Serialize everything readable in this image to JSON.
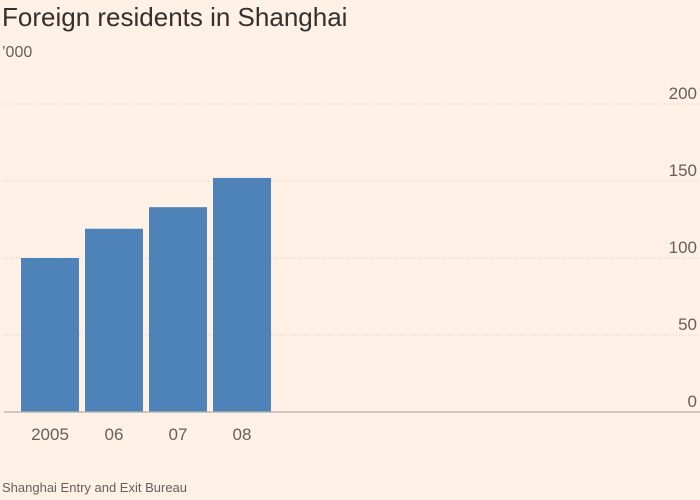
{
  "chart_data": {
    "type": "bar",
    "title": "Foreign residents in Shanghai",
    "subtitle": "’000",
    "source": "Shanghai Entry and Exit Bureau",
    "categories": [
      "2005",
      "06",
      "07",
      "08"
    ],
    "values": [
      100,
      119,
      133,
      152
    ],
    "ylim": [
      0,
      200
    ],
    "yticks": [
      0,
      50,
      100,
      150,
      200
    ],
    "xlabel": "",
    "ylabel": "",
    "grid": true,
    "bar_color": "#4e83b9"
  }
}
